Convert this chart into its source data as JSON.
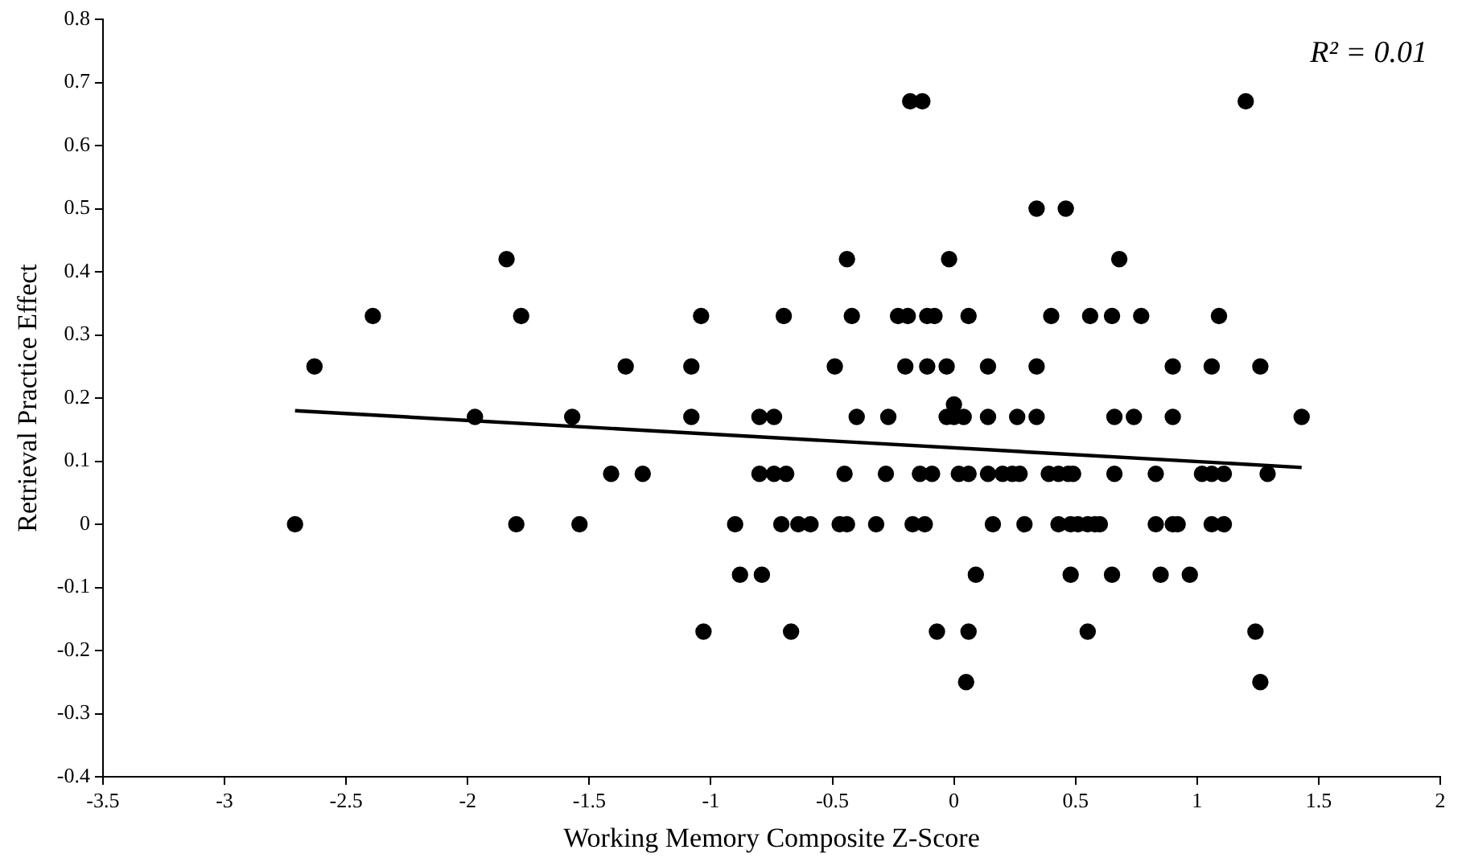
{
  "chart_data": {
    "type": "scatter",
    "xlabel": "Working Memory Composite Z-Score",
    "ylabel": "Retrieval Practice Effect",
    "annotations": [
      "R² = 0.01"
    ],
    "marker": "circle",
    "xlim": [
      -3.5,
      2
    ],
    "ylim": [
      -0.4,
      0.8
    ],
    "xticks": [
      -3.5,
      -3,
      -2.5,
      -2,
      -1.5,
      -1,
      -0.5,
      0,
      0.5,
      1,
      1.5,
      2
    ],
    "yticks": [
      -0.4,
      -0.3,
      -0.2,
      -0.1,
      0,
      0.1,
      0.2,
      0.3,
      0.4,
      0.5,
      0.6,
      0.7,
      0.8
    ],
    "series": [
      {
        "color": "#000000",
        "x": [
          -0.18,
          -0.13,
          1.2,
          0.34,
          0.46,
          -1.84,
          -0.44,
          -0.02,
          0.68,
          -2.39,
          -1.78,
          -1.04,
          -0.7,
          -0.42,
          -0.23,
          -0.19,
          -0.11,
          -0.08,
          0.06,
          0.4,
          0.56,
          0.65,
          0.77,
          1.09,
          -2.63,
          -1.35,
          -1.08,
          -0.49,
          -0.2,
          -0.11,
          -0.03,
          0.14,
          0.34,
          0.9,
          1.06,
          1.26,
          0.0,
          -1.97,
          -1.57,
          -1.08,
          -0.8,
          -0.74,
          -0.4,
          -0.27,
          -0.03,
          0.0,
          0.04,
          0.14,
          0.26,
          0.34,
          0.66,
          0.74,
          0.9,
          1.43,
          -1.41,
          -1.28,
          -0.8,
          -0.74,
          -0.69,
          -0.45,
          -0.28,
          -0.14,
          -0.09,
          0.02,
          0.06,
          0.14,
          0.2,
          0.24,
          0.27,
          0.39,
          0.43,
          0.47,
          0.49,
          0.66,
          0.83,
          1.02,
          1.06,
          1.11,
          1.29,
          -2.71,
          -1.8,
          -1.54,
          -0.9,
          -0.71,
          -0.64,
          -0.59,
          -0.47,
          -0.44,
          -0.32,
          -0.17,
          -0.12,
          0.16,
          0.29,
          0.43,
          0.48,
          0.51,
          0.55,
          0.58,
          0.6,
          0.83,
          0.9,
          0.92,
          1.06,
          1.11,
          -0.88,
          -0.79,
          0.09,
          0.48,
          0.65,
          0.85,
          0.97,
          -1.03,
          -0.67,
          -0.07,
          0.06,
          0.55,
          1.24,
          0.05,
          1.26
        ],
        "values": [
          0.67,
          0.67,
          0.67,
          0.5,
          0.5,
          0.42,
          0.42,
          0.42,
          0.42,
          0.33,
          0.33,
          0.33,
          0.33,
          0.33,
          0.33,
          0.33,
          0.33,
          0.33,
          0.33,
          0.33,
          0.33,
          0.33,
          0.33,
          0.33,
          0.25,
          0.25,
          0.25,
          0.25,
          0.25,
          0.25,
          0.25,
          0.25,
          0.25,
          0.25,
          0.25,
          0.25,
          0.19,
          0.17,
          0.17,
          0.17,
          0.17,
          0.17,
          0.17,
          0.17,
          0.17,
          0.17,
          0.17,
          0.17,
          0.17,
          0.17,
          0.17,
          0.17,
          0.17,
          0.17,
          0.08,
          0.08,
          0.08,
          0.08,
          0.08,
          0.08,
          0.08,
          0.08,
          0.08,
          0.08,
          0.08,
          0.08,
          0.08,
          0.08,
          0.08,
          0.08,
          0.08,
          0.08,
          0.08,
          0.08,
          0.08,
          0.08,
          0.08,
          0.08,
          0.08,
          0,
          0,
          0,
          0,
          0,
          0,
          0,
          0,
          0,
          0,
          0,
          0,
          0,
          0,
          0,
          0,
          0,
          0,
          0,
          0,
          0,
          0,
          0,
          0,
          0,
          -0.08,
          -0.08,
          -0.08,
          -0.08,
          -0.08,
          -0.08,
          -0.08,
          -0.17,
          -0.17,
          -0.17,
          -0.17,
          -0.17,
          -0.17,
          -0.25,
          -0.25
        ]
      },
      {
        "type": "line",
        "marker": "none",
        "color": "#000000",
        "x": [
          -2.71,
          1.43
        ],
        "values": [
          0.18,
          0.09
        ]
      }
    ]
  }
}
